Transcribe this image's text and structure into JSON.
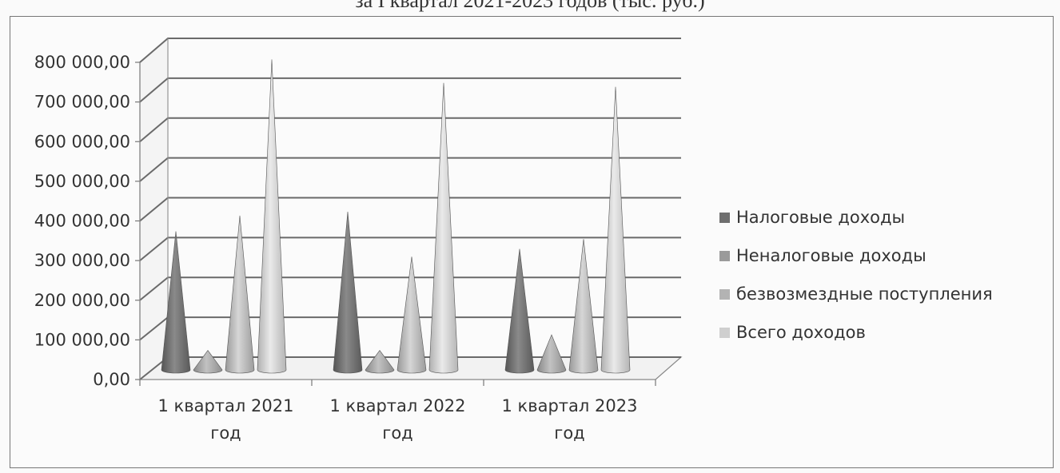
{
  "chart_data": {
    "type": "bar",
    "title_partial": "за I квартал 2021-2023 годов (тыс. руб.)",
    "categories": [
      "1 квартал 2021 год",
      "1 квартал 2022 год",
      "1 квартал 2023 год"
    ],
    "category_lines": [
      [
        "1 квартал 2021",
        "год"
      ],
      [
        "1 квартал 2022",
        "год"
      ],
      [
        "1 квартал 2023",
        "год"
      ]
    ],
    "series": [
      {
        "name": "Налоговые доходы",
        "values": [
          355000,
          405000,
          310000
        ],
        "color": "#6f6f6f"
      },
      {
        "name": "Неналоговые доходы",
        "values": [
          50000,
          50000,
          90000
        ],
        "color": "#9a9a9a"
      },
      {
        "name": "безвозмездные поступления",
        "values": [
          395000,
          290000,
          335000
        ],
        "color": "#b3b3b3"
      },
      {
        "name": "Всего доходов",
        "values": [
          795000,
          735000,
          725000
        ],
        "color": "#cfcfcf"
      }
    ],
    "yticks": [
      "0,00",
      "100 000,00",
      "200 000,00",
      "300 000,00",
      "400 000,00",
      "500 000,00",
      "600 000,00",
      "700 000,00",
      "800 000,00"
    ],
    "ylim": [
      0,
      800000
    ],
    "bar_shape": "cone",
    "legend_position": "right",
    "grid": true
  }
}
